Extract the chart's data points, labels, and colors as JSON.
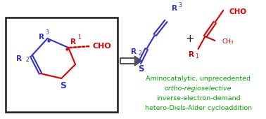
{
  "bg_color": "#ffffff",
  "box_color": "#1a1a1a",
  "blue_color": "#3030d0",
  "red_color": "#dd0000",
  "green_color": "#00aa00",
  "gray_color": "#555555",
  "green_lines": [
    [
      "Aminocatalytic, unprecedented",
      false
    ],
    [
      "ortho-regioselective",
      true
    ],
    [
      "inverse-electron-demand",
      false
    ],
    [
      "hetero-Diels-Alder cycloaddition",
      false
    ]
  ]
}
